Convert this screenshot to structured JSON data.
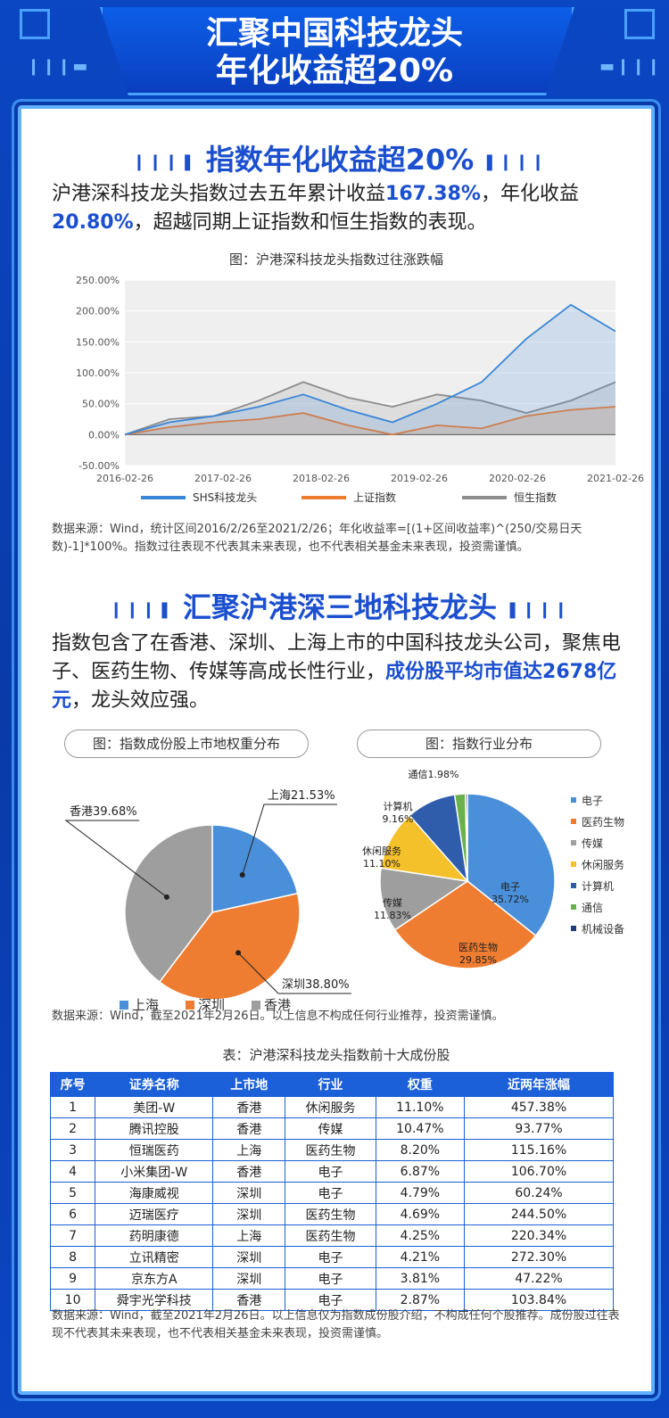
{
  "header": {
    "line1": "汇聚中国科技龙头",
    "line2": "年化收益超20%"
  },
  "section1": {
    "title": "指数年化收益超20%",
    "para_a": "沪港深科技龙头指数过去五年累计收益",
    "para_b": "167.38%",
    "para_c": "，年化收",
    "para_d": "益",
    "para_e": "20.80%",
    "para_f": "，超越同期上证指数和恒生指数的表现。",
    "chart_caption": "图：沪港深科技龙头指数过往涨跌幅",
    "note": "数据来源：Wind，统计区间2016/2/26至2021/2/26；年化收益率=[(1+区间收益率)^(250/交易日天数)-1]*100%。指数过往表现不代表其未来表现，也不代表相关基金未来表现，投资需谨慎。"
  },
  "section2": {
    "title": "汇聚沪港深三地科技龙头",
    "para_a": "指数包含了在香港、深圳、上海上市的中国科技龙头公司，聚焦电子、医药生物、传媒等高成长性行业，",
    "para_b": "成份股平均市值达2678亿元",
    "para_c": "，龙头效应强。",
    "pill_left": "图：指数成份股上市地权重分布",
    "pill_right": "图：指数行业分布",
    "note": "数据来源：Wind，截至2021年2月26日。以上信息不构成任何行业推荐，投资需谨慎。"
  },
  "table": {
    "caption": "表：沪港深科技龙头指数前十大成份股",
    "headers": [
      "序号",
      "证券名称",
      "上市地",
      "行业",
      "权重",
      "近两年涨幅"
    ],
    "rows": [
      [
        "1",
        "美团-W",
        "香港",
        "休闲服务",
        "11.10%",
        "457.38%"
      ],
      [
        "2",
        "腾讯控股",
        "香港",
        "传媒",
        "10.47%",
        "93.77%"
      ],
      [
        "3",
        "恒瑞医药",
        "上海",
        "医药生物",
        "8.20%",
        "115.16%"
      ],
      [
        "4",
        "小米集团-W",
        "香港",
        "电子",
        "6.87%",
        "106.70%"
      ],
      [
        "5",
        "海康威视",
        "深圳",
        "电子",
        "4.79%",
        "60.24%"
      ],
      [
        "6",
        "迈瑞医疗",
        "深圳",
        "医药生物",
        "4.69%",
        "244.50%"
      ],
      [
        "7",
        "药明康德",
        "上海",
        "医药生物",
        "4.25%",
        "220.34%"
      ],
      [
        "8",
        "立讯精密",
        "深圳",
        "电子",
        "4.21%",
        "272.30%"
      ],
      [
        "9",
        "京东方A",
        "深圳",
        "电子",
        "3.81%",
        "47.22%"
      ],
      [
        "10",
        "舜宇光学科技",
        "香港",
        "电子",
        "2.87%",
        "103.84%"
      ]
    ],
    "note": "数据来源：Wind，截至2021年2月26日。以上信息仅为指数成份股介绍，不构成任何个股推荐。成份股过往表现不代表其未来表现，也不代表相关基金未来表现，投资需谨慎。"
  },
  "chart_data": [
    {
      "type": "line",
      "title": "图：沪港深科技龙头指数过往涨跌幅",
      "x": [
        "2016-02-26",
        "2016-08-26",
        "2017-02-26",
        "2017-08-26",
        "2018-02-26",
        "2018-08-26",
        "2019-02-26",
        "2019-08-26",
        "2020-02-26",
        "2020-08-26",
        "2021-01-26",
        "2021-02-26"
      ],
      "xticks": [
        "2016-02-26",
        "2017-02-26",
        "2018-02-26",
        "2019-02-26",
        "2020-02-26",
        "2021-02-26"
      ],
      "yticks": [
        "250.00%",
        "200.00%",
        "150.00%",
        "100.00%",
        "50.00%",
        "0.00%",
        "-50.00%"
      ],
      "ylim": [
        -50,
        250
      ],
      "colors": {
        "SHS科技龙头": "#3a86d6",
        "上证指数": "#ee7d31",
        "恒生指数": "#8c8c8c"
      },
      "series": [
        {
          "name": "SHS科技龙头",
          "values": [
            0,
            20,
            30,
            45,
            65,
            40,
            20,
            50,
            85,
            155,
            210,
            167
          ]
        },
        {
          "name": "上证指数",
          "values": [
            0,
            12,
            20,
            25,
            35,
            15,
            0,
            15,
            10,
            30,
            40,
            45
          ]
        },
        {
          "name": "恒生指数",
          "values": [
            0,
            25,
            30,
            55,
            85,
            60,
            45,
            65,
            55,
            35,
            55,
            85
          ]
        }
      ]
    },
    {
      "type": "pie",
      "title": "图：指数成份股上市地权重分布",
      "labels": [
        "上海",
        "深圳",
        "香港"
      ],
      "values": [
        21.53,
        38.8,
        39.68
      ],
      "display": [
        "上海21.53%",
        "深圳38.80%",
        "香港39.68%"
      ],
      "colors": [
        "#4a8fd9",
        "#ee7d31",
        "#9e9e9e"
      ],
      "legend": [
        "上海",
        "深圳",
        "香港"
      ]
    },
    {
      "type": "pie",
      "title": "图：指数行业分布",
      "labels": [
        "电子",
        "医药生物",
        "传媒",
        "休闲服务",
        "计算机",
        "通信",
        "机械设备"
      ],
      "values": [
        35.72,
        29.85,
        11.83,
        11.1,
        9.16,
        1.98,
        0.36
      ],
      "display": [
        "电子\n35.72%",
        "医药生物\n29.85%",
        "传媒\n11.83%",
        "休闲服务\n11.10%",
        "计算机\n9.16%",
        "通信1.98%",
        ""
      ],
      "colors": [
        "#4a8fd9",
        "#ee7d31",
        "#9e9e9e",
        "#f5c12b",
        "#2f5dab",
        "#6ab04c",
        "#1f3c7a"
      ],
      "legend": [
        "电子",
        "医药生物",
        "传媒",
        "休闲服务",
        "计算机",
        "通信",
        "机械设备"
      ]
    }
  ]
}
